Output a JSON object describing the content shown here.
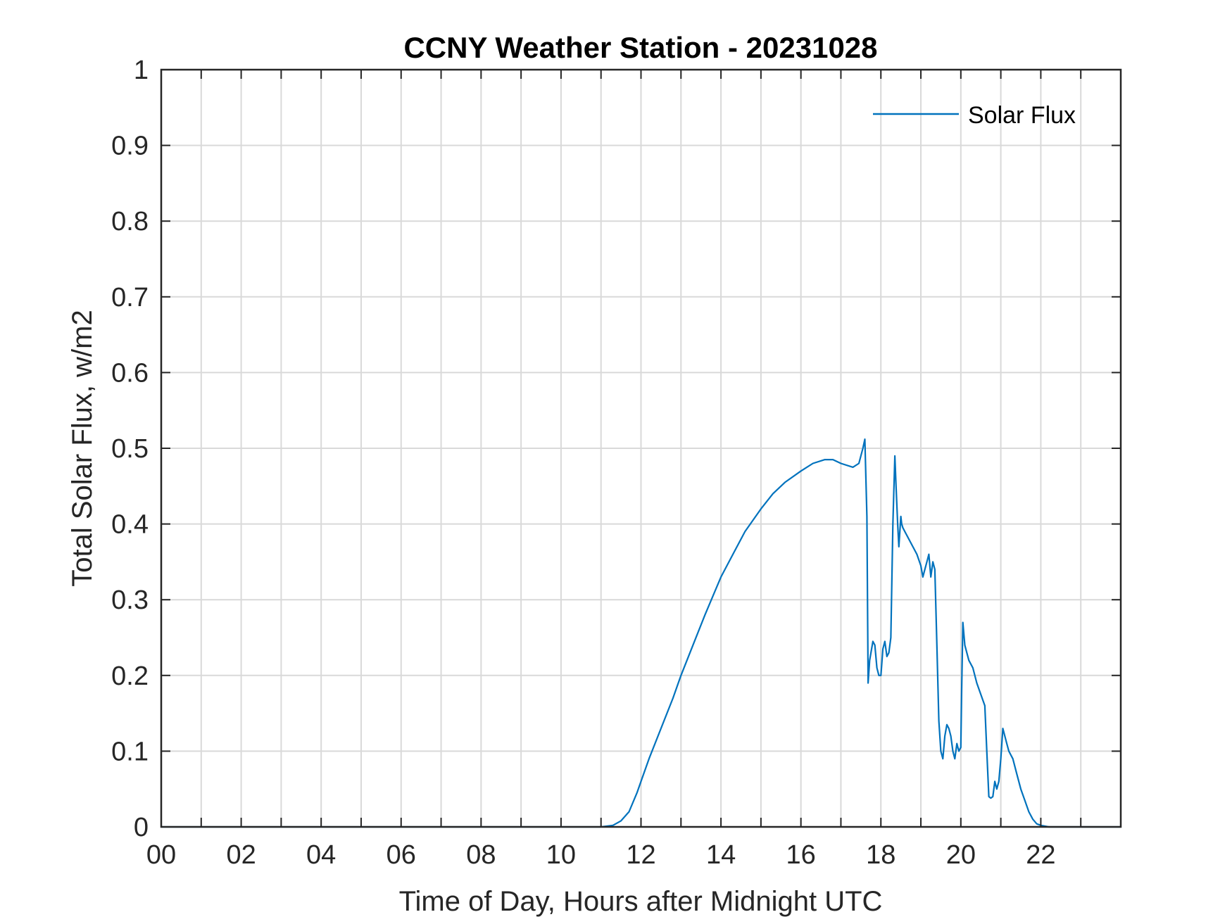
{
  "chart_data": {
    "type": "line",
    "title": "CCNY Weather Station - 20231028",
    "xlabel": "Time of Day, Hours after Midnight UTC",
    "ylabel": "Total Solar Flux, w/m2",
    "xlim": [
      0,
      24
    ],
    "ylim": [
      0,
      1
    ],
    "grid": true,
    "legend_position": "top-right",
    "x_ticks": [
      0,
      2,
      4,
      6,
      8,
      10,
      12,
      14,
      16,
      18,
      20,
      22
    ],
    "x_tick_labels": [
      "00",
      "02",
      "04",
      "06",
      "08",
      "10",
      "12",
      "14",
      "16",
      "18",
      "20",
      "22"
    ],
    "y_ticks": [
      0,
      0.1,
      0.2,
      0.3,
      0.4,
      0.5,
      0.6,
      0.7,
      0.8,
      0.9,
      1
    ],
    "y_tick_labels": [
      "0",
      "0.1",
      "0.2",
      "0.3",
      "0.4",
      "0.5",
      "0.6",
      "0.7",
      "0.8",
      "0.9",
      "1"
    ],
    "series": [
      {
        "name": "Solar Flux",
        "color": "#0072BD",
        "x": [
          0,
          11.0,
          11.3,
          11.5,
          11.7,
          11.9,
          12.0,
          12.2,
          12.5,
          12.8,
          13.0,
          13.3,
          13.6,
          14.0,
          14.3,
          14.6,
          15.0,
          15.3,
          15.6,
          16.0,
          16.3,
          16.6,
          16.8,
          17.0,
          17.3,
          17.45,
          17.55,
          17.6,
          17.65,
          17.68,
          17.72,
          17.8,
          17.85,
          17.9,
          17.95,
          18.0,
          18.05,
          18.1,
          18.15,
          18.2,
          18.25,
          18.3,
          18.35,
          18.38,
          18.42,
          18.45,
          18.5,
          18.52,
          18.55,
          18.6,
          18.7,
          18.8,
          18.9,
          19.0,
          19.05,
          19.1,
          19.15,
          19.2,
          19.25,
          19.3,
          19.35,
          19.4,
          19.45,
          19.5,
          19.55,
          19.6,
          19.65,
          19.7,
          19.75,
          19.8,
          19.85,
          19.9,
          19.95,
          20.0,
          20.02,
          20.05,
          20.1,
          20.2,
          20.3,
          20.4,
          20.5,
          20.6,
          20.65,
          20.7,
          20.75,
          20.8,
          20.85,
          20.9,
          20.95,
          21.0,
          21.05,
          21.1,
          21.15,
          21.2,
          21.3,
          21.4,
          21.5,
          21.6,
          21.7,
          21.8,
          21.9,
          22.0,
          22.2,
          22.5,
          24.0
        ],
        "values": [
          0,
          0,
          0.002,
          0.008,
          0.02,
          0.045,
          0.06,
          0.09,
          0.13,
          0.17,
          0.2,
          0.24,
          0.28,
          0.33,
          0.36,
          0.39,
          0.42,
          0.44,
          0.455,
          0.47,
          0.48,
          0.485,
          0.485,
          0.48,
          0.475,
          0.48,
          0.5,
          0.512,
          0.41,
          0.19,
          0.22,
          0.245,
          0.24,
          0.21,
          0.2,
          0.2,
          0.235,
          0.245,
          0.225,
          0.23,
          0.25,
          0.4,
          0.49,
          0.45,
          0.4,
          0.37,
          0.41,
          0.4,
          0.395,
          0.39,
          0.38,
          0.37,
          0.36,
          0.345,
          0.33,
          0.34,
          0.35,
          0.36,
          0.33,
          0.35,
          0.34,
          0.24,
          0.14,
          0.1,
          0.09,
          0.12,
          0.135,
          0.13,
          0.12,
          0.1,
          0.09,
          0.11,
          0.1,
          0.105,
          0.18,
          0.27,
          0.24,
          0.22,
          0.21,
          0.19,
          0.175,
          0.16,
          0.1,
          0.04,
          0.038,
          0.04,
          0.06,
          0.05,
          0.06,
          0.09,
          0.13,
          0.12,
          0.11,
          0.1,
          0.09,
          0.07,
          0.05,
          0.035,
          0.02,
          0.01,
          0.004,
          0.002,
          0,
          0,
          0
        ]
      }
    ]
  }
}
